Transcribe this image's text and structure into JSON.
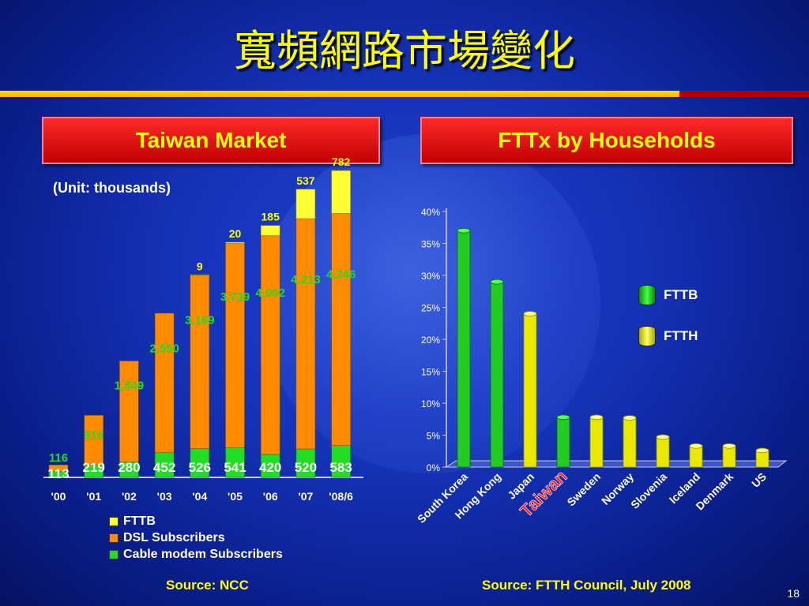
{
  "slide": {
    "title": "寬頻網路市場變化",
    "left_header": "Taiwan Market",
    "right_header": "FTTx by Households",
    "unit_note": "(Unit: thousands)",
    "left_source": "Source: NCC",
    "right_source": "Source: FTTH Council, July 2008",
    "page_number": "18",
    "taiwan_label": "Taiwan"
  },
  "colors": {
    "fttb": "#ffff33",
    "dsl": "#ff8c00",
    "cable": "#22dd22",
    "ftth": "#ffff22",
    "title": "#ffff00",
    "header_bg": "#e00000"
  },
  "chart_data": [
    {
      "type": "bar",
      "stacked": true,
      "categories": [
        "'00",
        "'01",
        "'02",
        "'03",
        "'04",
        "'05",
        "'06",
        "'07",
        "'08/6"
      ],
      "series": [
        {
          "name": "Cable modem Subscribers",
          "values": [
            113,
            219,
            280,
            452,
            526,
            541,
            420,
            520,
            583
          ]
        },
        {
          "name": "DSL Subscribers",
          "values": [
            116,
            916,
            1849,
            2550,
            3169,
            3739,
            4002,
            4213,
            4246
          ]
        },
        {
          "name": "FTTB",
          "values": [
            null,
            null,
            null,
            null,
            9,
            20,
            185,
            537,
            782
          ]
        }
      ],
      "data_labels": {
        "cable": [
          "113",
          "219",
          "280",
          "452",
          "526",
          "541",
          "420",
          "520",
          "583"
        ],
        "dsl": [
          "116",
          "916",
          "1,849",
          "2,550",
          "3,169",
          "3,739",
          "4,002",
          "4,213",
          "4,246"
        ],
        "fttb": [
          "",
          "",
          "",
          "",
          "9",
          "20",
          "185",
          "537",
          "782"
        ]
      },
      "legend": [
        "FTTB",
        "DSL Subscribers",
        "Cable modem Subscribers"
      ],
      "legend_position": "bottom",
      "ylim": [
        0,
        5700
      ],
      "grid": false
    },
    {
      "type": "bar",
      "categories": [
        "South Korea",
        "Hong Kong",
        "Japan",
        "Taiwan",
        "Sweden",
        "Norway",
        "Slovenia",
        "Iceland",
        "Denmark",
        "US"
      ],
      "series": [
        {
          "name": "FTTB",
          "values": [
            0.37,
            0.29,
            null,
            0.078,
            null,
            null,
            null,
            null,
            null,
            null
          ]
        },
        {
          "name": "FTTH",
          "values": [
            null,
            null,
            0.24,
            null,
            0.078,
            0.077,
            0.047,
            0.033,
            0.033,
            0.026
          ]
        }
      ],
      "yticks": [
        "0%",
        "5%",
        "10%",
        "15%",
        "20%",
        "25%",
        "30%",
        "35%",
        "40%"
      ],
      "ylim": [
        0,
        0.4
      ],
      "legend": [
        "FTTB",
        "FTTH"
      ],
      "legend_position": "right",
      "grid": false
    }
  ]
}
